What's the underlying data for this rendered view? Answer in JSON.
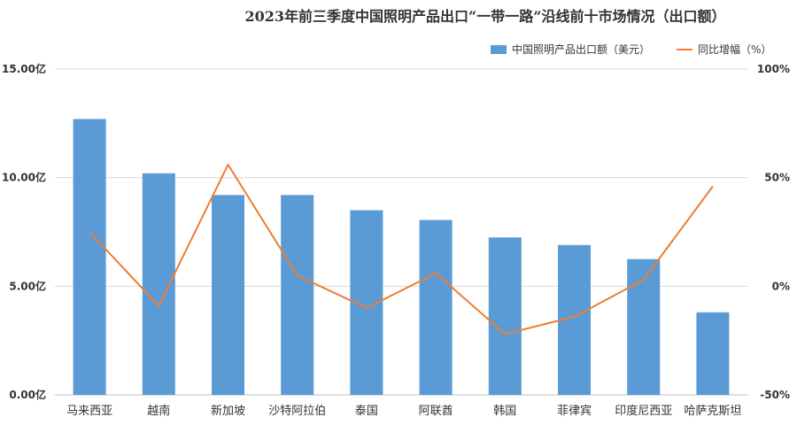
{
  "chart_data": {
    "type": "bar",
    "title": "2023年前三季度中国照明产品出口“一带一路”沿线前十市场情况（出口额）",
    "categories": [
      "马来西亚",
      "越南",
      "新加坡",
      "沙特阿拉伯",
      "泰国",
      "阿联酋",
      "韩国",
      "菲律宾",
      "印度尼西亚",
      "哈萨克斯坦"
    ],
    "series": [
      {
        "name": "中国照明产品出口额（美元）",
        "type": "bar",
        "axis": "left",
        "color": "#5B9BD5",
        "values": [
          12.7,
          10.2,
          9.2,
          9.2,
          8.5,
          8.05,
          7.25,
          6.9,
          6.25,
          3.8
        ]
      },
      {
        "name": "同比增幅（%）",
        "type": "line",
        "axis": "right",
        "color": "#ED7D31",
        "values": [
          25,
          -9,
          56,
          5,
          -10,
          6,
          -22,
          -14,
          3,
          46
        ]
      }
    ],
    "y_left": {
      "range": [
        0,
        15
      ],
      "ticks": [
        0,
        5,
        10,
        15
      ],
      "tick_labels": [
        "0.00亿",
        "5.00亿",
        "10.00亿",
        "15.00亿"
      ]
    },
    "y_right": {
      "range": [
        -50,
        100
      ],
      "ticks": [
        -50,
        0,
        50,
        100
      ],
      "tick_labels": [
        "-50%",
        "0%",
        "50%",
        "100%"
      ]
    },
    "grid": true,
    "legend_position": "top-right"
  }
}
